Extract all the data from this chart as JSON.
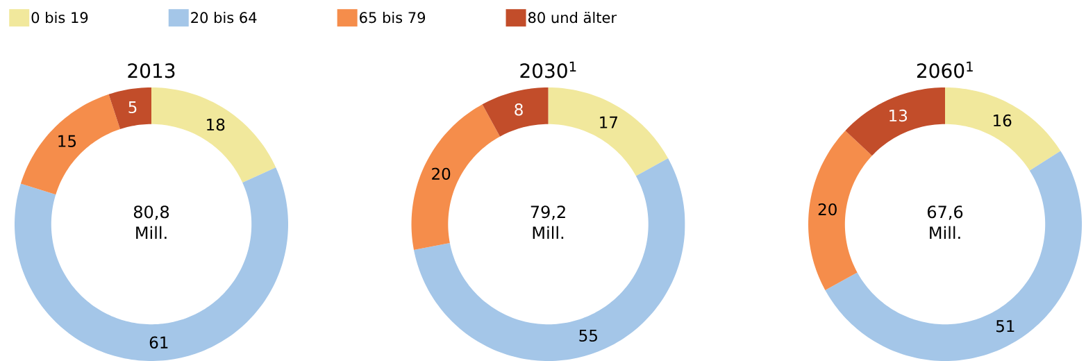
{
  "chart_data": [
    {
      "type": "donut",
      "title": "2013",
      "categories": [
        "0 bis 19",
        "20 bis 64",
        "65 bis 79",
        "80 und älter"
      ],
      "values": [
        18,
        61,
        15,
        5
      ],
      "colors": [
        "#f1e89c",
        "#a4c6e8",
        "#f58d4b",
        "#c24d2a"
      ],
      "data_labels": true,
      "annotations": [
        "80,8 Mill."
      ],
      "legend": "top"
    },
    {
      "type": "donut",
      "title": "2030$^{1}$",
      "categories": [
        null,
        null,
        null,
        null
      ],
      "values": [
        17,
        55,
        20,
        8
      ],
      "colors": [
        "#f1e89c",
        "#a4c6e8",
        "#f58d4b",
        "#c24d2a"
      ],
      "data_labels": true,
      "annotations": [
        "79,2 Mill."
      ]
    },
    {
      "type": "donut",
      "title": "2060$^{1}$",
      "categories": [
        null,
        null,
        null,
        null
      ],
      "values": [
        16,
        51,
        20,
        13
      ],
      "colors": [
        "#f1e89c",
        "#a4c6e8",
        "#f58d4b",
        "#c24d2a"
      ],
      "data_labels": true,
      "annotations": [
        "67,6 Mill."
      ]
    }
  ]
}
